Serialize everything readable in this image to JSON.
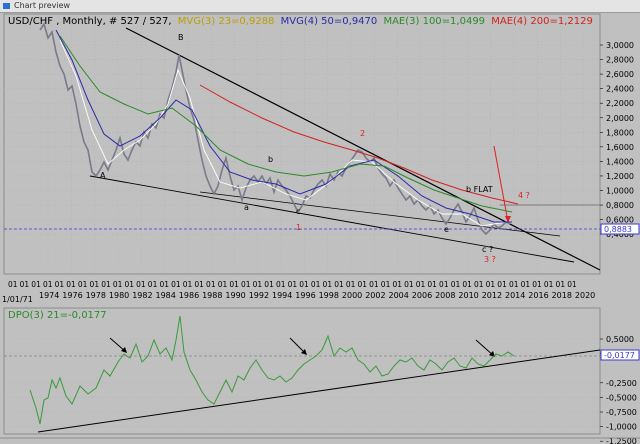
{
  "window": {
    "title": "Chart preview"
  },
  "main_panel": {
    "symbol": "USD/CHF",
    "info": ", Monthly, # 527 / 527,",
    "indicators": [
      {
        "text": "MVG(3) 23=0,9288",
        "color": "#b8a000"
      },
      {
        "text": "MVG(4) 50=0,9470",
        "color": "#2a2aa8"
      },
      {
        "text": "MAE(3) 100=1,0499",
        "color": "#2a8a2a"
      },
      {
        "text": "MAE(4) 200=1,2129",
        "color": "#d42020"
      }
    ],
    "current_price": "0,8883",
    "y_ticks": [
      "3,0000",
      "2,8000",
      "2,6000",
      "2,4000",
      "2,2000",
      "2,0000",
      "1,8000",
      "1,6000",
      "1,4000",
      "1,2000",
      "1,0000",
      "0,8000",
      "0,6000",
      "0,4000"
    ],
    "year_labels": [
      "1974",
      "1976",
      "1978",
      "1980",
      "1982",
      "1984",
      "1986",
      "1988",
      "1990",
      "1992",
      "1994",
      "1996",
      "1998",
      "2000",
      "2002",
      "2004",
      "2006",
      "2008",
      "2010",
      "2012",
      "2014",
      "2016",
      "2018",
      "2020"
    ],
    "month_tick": "01",
    "start_date": "1/01/71",
    "annotations": [
      {
        "text": "B",
        "color": "#000000"
      },
      {
        "text": "A",
        "color": "#000000"
      },
      {
        "text": "a",
        "color": "#000000"
      },
      {
        "text": "b",
        "color": "#000000"
      },
      {
        "text": "c",
        "color": "#000000"
      },
      {
        "text": "2",
        "color": "#e02020"
      },
      {
        "text": "1",
        "color": "#e02020"
      },
      {
        "text": "b FLAT",
        "color": "#000000"
      },
      {
        "text": "4 ?",
        "color": "#e02020"
      },
      {
        "text": "e",
        "color": "#000000"
      },
      {
        "text": "c ?",
        "color": "#000000"
      },
      {
        "text": "3 ?",
        "color": "#e02020"
      }
    ]
  },
  "dpo_panel": {
    "label": "DPO(3) 21=-0,0177",
    "label_color": "#2a8a2a",
    "current_value": "-0,0177",
    "y_ticks": [
      "0,5000",
      "0,2500",
      "-0,2500",
      "-0,5000",
      "-0,7500",
      "-1,0000",
      "-1,2500"
    ]
  },
  "colors": {
    "panel_bg": "#c0c0c0",
    "price": "#7a7a8a",
    "mvg3": "#ffffff",
    "mvg4": "#2a2aa8",
    "mae3": "#2a8a2a",
    "mae4": "#d42020",
    "dpo": "#3a9a3a",
    "dashed": "#3a3ad8"
  }
}
